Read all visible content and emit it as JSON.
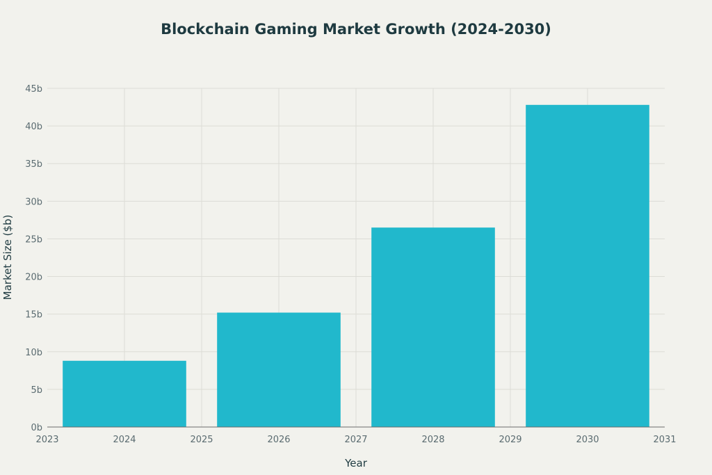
{
  "chart_data": {
    "type": "bar",
    "title": "Blockchain Gaming Market Growth (2024-2030)",
    "xlabel": "Year",
    "ylabel": "Market Size ($b)",
    "x": [
      2024,
      2026,
      2028,
      2030
    ],
    "values": [
      8.8,
      15.2,
      26.5,
      42.8
    ],
    "xlim": [
      2023,
      2031
    ],
    "ylim": [
      0,
      45
    ],
    "xticks": [
      "2023",
      "2024",
      "2025",
      "2026",
      "2027",
      "2028",
      "2029",
      "2030",
      "2031"
    ],
    "yticks": [
      "0b",
      "5b",
      "10b",
      "15b",
      "20b",
      "25b",
      "30b",
      "35b",
      "40b",
      "45b"
    ],
    "grid": true,
    "bar_color": "#21b8cc",
    "legend": "none"
  }
}
